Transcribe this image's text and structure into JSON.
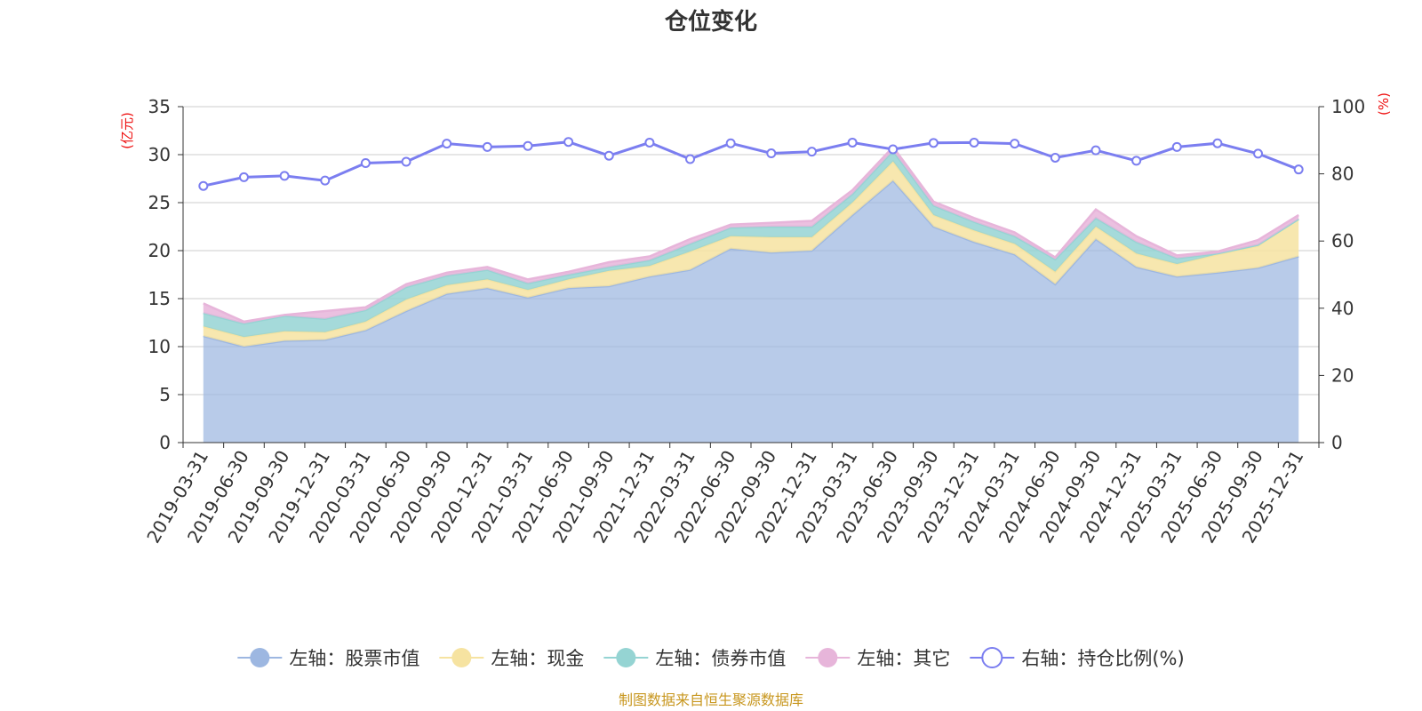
{
  "chart_data": {
    "type": "area",
    "title": "仓位变化",
    "left_axis_unit": "(亿元)",
    "right_axis_unit": "(%)",
    "ylim_left": [
      0,
      35
    ],
    "yticks_left": [
      "0",
      "5",
      "10",
      "15",
      "20",
      "25",
      "30",
      "35"
    ],
    "ylim_right": [
      0,
      100
    ],
    "yticks_right": [
      "0",
      "20",
      "40",
      "60",
      "80",
      "100"
    ],
    "categories": [
      "2019-03-31",
      "2019-06-30",
      "2019-09-30",
      "2019-12-31",
      "2020-03-31",
      "2020-06-30",
      "2020-09-30",
      "2020-12-31",
      "2021-03-31",
      "2021-06-30",
      "2021-09-30",
      "2021-12-31",
      "2022-03-31",
      "2022-06-30",
      "2022-09-30",
      "2022-12-31",
      "2023-03-31",
      "2023-06-30",
      "2023-09-30",
      "2023-12-31",
      "2024-03-31",
      "2024-06-30",
      "2024-09-30",
      "2024-12-31",
      "2025-03-31",
      "2025-06-30",
      "2025-09-30",
      "2025-12-31"
    ],
    "stacked_series": [
      {
        "name": "左轴：股票市值",
        "color": "#9db7e1",
        "values": [
          11.1,
          10.0,
          10.6,
          10.7,
          11.7,
          13.7,
          15.5,
          16.1,
          15.1,
          16.1,
          16.3,
          17.3,
          18.0,
          20.2,
          19.8,
          20.0,
          23.7,
          27.3,
          22.5,
          20.9,
          19.6,
          16.5,
          21.2,
          18.3,
          17.3,
          17.7,
          18.2,
          19.4
        ]
      },
      {
        "name": "左轴：现金",
        "color": "#f6e3a1",
        "values": [
          1.0,
          1.0,
          1.0,
          0.8,
          0.9,
          1.2,
          0.9,
          0.9,
          0.8,
          0.9,
          1.6,
          1.1,
          1.9,
          1.3,
          1.6,
          1.4,
          1.3,
          2.0,
          1.2,
          1.2,
          1.1,
          1.3,
          1.3,
          1.4,
          1.3,
          1.9,
          2.3,
          3.9
        ]
      },
      {
        "name": "左轴：债券市值",
        "color": "#95d4d3",
        "values": [
          1.4,
          1.4,
          1.6,
          1.4,
          1.2,
          1.3,
          1.0,
          1.0,
          0.7,
          0.5,
          0.4,
          0.6,
          0.8,
          0.9,
          1.1,
          1.1,
          0.9,
          1.1,
          1.0,
          0.9,
          0.8,
          1.3,
          0.9,
          1.2,
          0.6,
          0.1,
          0.1,
          0.0
        ]
      },
      {
        "name": "左轴：其它",
        "color": "#e7b5da",
        "values": [
          1.0,
          0.2,
          0.1,
          0.8,
          0.3,
          0.3,
          0.3,
          0.3,
          0.4,
          0.3,
          0.5,
          0.4,
          0.5,
          0.3,
          0.4,
          0.6,
          0.4,
          0.4,
          0.4,
          0.4,
          0.4,
          0.2,
          0.9,
          0.6,
          0.3,
          0.2,
          0.5,
          0.4
        ]
      }
    ],
    "line_series": {
      "name": "右轴：持仓比例(%)",
      "color": "#7b7ef0",
      "values": [
        76.4,
        79.0,
        79.4,
        78.0,
        83.2,
        83.6,
        89.0,
        88.0,
        88.3,
        89.5,
        85.4,
        89.3,
        84.4,
        89.1,
        86.1,
        86.6,
        89.3,
        87.3,
        89.2,
        89.3,
        89.0,
        84.8,
        87.0,
        83.9,
        88.0,
        89.1,
        86.0,
        81.3
      ]
    },
    "legend_position": "bottom-center",
    "grid": true
  },
  "source_note": "制图数据来自恒生聚源数据库"
}
